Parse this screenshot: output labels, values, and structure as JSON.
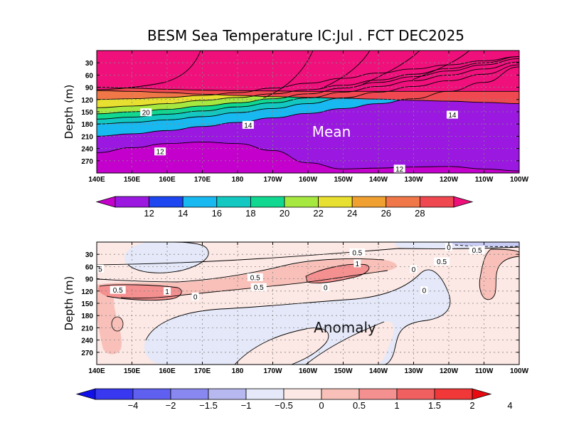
{
  "chart_data": {
    "type": "heatmap",
    "title": "BESM Sea Temperature  IC:Jul . FCT DEC2025",
    "x_ticks": [
      "140E",
      "150E",
      "160E",
      "170E",
      "180",
      "170W",
      "160W",
      "150W",
      "140W",
      "130W",
      "120W",
      "110W",
      "100W"
    ],
    "y_ticks": [
      "30",
      "60",
      "90",
      "120",
      "150",
      "180",
      "210",
      "240",
      "270"
    ],
    "ylabel": "Depth (m)",
    "xlim": [
      140,
      260
    ],
    "ylim": [
      0,
      300
    ],
    "panels": [
      {
        "label": "Mean",
        "colorbar": {
          "labels": [
            "12",
            "14",
            "16",
            "18",
            "20",
            "22",
            "24",
            "26",
            "28"
          ],
          "colors": [
            "#c400cc",
            "#9a18e0",
            "#1d45f0",
            "#18b8f0",
            "#12c8c0",
            "#10d890",
            "#a6e840",
            "#e8e030",
            "#f0a030",
            "#f07848",
            "#f04850",
            "#f0107c"
          ]
        },
        "isotherm_depths_x": [
          140,
          150,
          160,
          170,
          180,
          190,
          200,
          210,
          220,
          230,
          240,
          250,
          260
        ],
        "isotherms": [
          {
            "value": 28,
            "depths": [
              90,
              92,
              95,
              97,
              98,
              99,
              100,
              100,
              100,
              100,
              100,
              100,
              100
            ]
          },
          {
            "value": 26,
            "depths": [
              98,
              100,
              103,
              107,
              110,
              113,
              115,
              117,
              119,
              122,
              124,
              127,
              130
            ]
          },
          {
            "value": 24,
            "depths": [
              120,
              118,
              115,
              110,
              103,
              92,
              80,
              68,
              55,
              45,
              35,
              25,
              15
            ]
          },
          {
            "value": 22,
            "depths": [
              140,
              136,
              130,
              122,
              115,
              106,
              96,
              85,
              72,
              58,
              44,
              30,
              15
            ]
          },
          {
            "value": 20,
            "depths": [
              155,
              150,
              144,
              136,
              128,
              118,
              106,
              92,
              78,
              64,
              50,
              35,
              20
            ]
          },
          {
            "value": 18,
            "depths": [
              168,
              163,
              156,
              148,
              138,
              128,
              116,
              102,
              88,
              74,
              60,
              45,
              28
            ]
          },
          {
            "value": 16,
            "depths": [
              180,
              176,
              170,
              162,
              152,
              142,
              130,
              116,
              102,
              88,
              74,
              58,
              35
            ]
          },
          {
            "value": 14,
            "depths": [
              210,
              204,
              196,
              186,
              176,
              165,
              154,
              142,
              130,
              118,
              100,
              78,
              40
            ]
          },
          {
            "value": 12,
            "depths": [
              250,
              238,
              228,
              224,
              228,
              245,
              275,
              290,
              288,
              285,
              284,
              290,
              295
            ]
          }
        ],
        "contour_labels": [
          {
            "text": "20",
            "x": 154,
            "d": 152
          },
          {
            "text": "14",
            "x": 183,
            "d": 183
          },
          {
            "text": "14",
            "x": 241,
            "d": 158
          },
          {
            "text": "12",
            "x": 158,
            "d": 248
          },
          {
            "text": "12",
            "x": 226,
            "d": 290
          }
        ]
      },
      {
        "label": "Anomaly",
        "colorbar": {
          "labels": [
            "-4",
            "-2",
            "-1.5",
            "-1",
            "-0.5",
            "0",
            "0.5",
            "1",
            "1.5",
            "2",
            "4"
          ],
          "colors": [
            "#1010e8",
            "#3838f0",
            "#6060f0",
            "#8888f0",
            "#b8b8f0",
            "#e4e8f8",
            "#fce8e4",
            "#f8c0b8",
            "#f49090",
            "#f06060",
            "#f03838",
            "#e80a10"
          ]
        },
        "contour_labels": [
          {
            "text": "5",
            "x": 141,
            "d": 66
          },
          {
            "text": "0.5",
            "x": 146,
            "d": 118
          },
          {
            "text": "1",
            "x": 160,
            "d": 121
          },
          {
            "text": "0",
            "x": 168,
            "d": 134
          },
          {
            "text": "0.5",
            "x": 185,
            "d": 87
          },
          {
            "text": "0.5",
            "x": 186,
            "d": 111
          },
          {
            "text": "0",
            "x": 205,
            "d": 112
          },
          {
            "text": "0.5",
            "x": 214,
            "d": 26
          },
          {
            "text": "1",
            "x": 214,
            "d": 53
          },
          {
            "text": "0.5",
            "x": 238,
            "d": 48
          },
          {
            "text": "0",
            "x": 230,
            "d": 67
          },
          {
            "text": "0",
            "x": 233,
            "d": 119
          },
          {
            "text": "0",
            "x": 240,
            "d": 13
          },
          {
            "text": "0.5",
            "x": 248,
            "d": 20
          }
        ]
      }
    ]
  }
}
